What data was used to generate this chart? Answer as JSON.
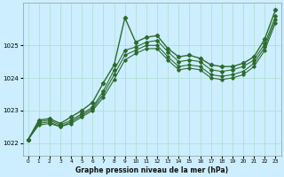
{
  "xlabel": "Graphe pression niveau de la mer (hPa)",
  "bg_color": "#cceeff",
  "grid_color": "#aaddcc",
  "line_color": "#2d6b2d",
  "ylim": [
    1021.6,
    1026.3
  ],
  "yticks": [
    1022,
    1023,
    1024,
    1025
  ],
  "ytick_labels": [
    "1022",
    "1023",
    "1024",
    "1025"
  ],
  "xlim": [
    -0.5,
    23.5
  ],
  "xticks": [
    0,
    1,
    2,
    3,
    4,
    5,
    6,
    7,
    8,
    9,
    10,
    11,
    12,
    13,
    14,
    15,
    16,
    17,
    18,
    19,
    20,
    21,
    22,
    23
  ],
  "line1": [
    1022.1,
    1022.7,
    1022.75,
    1022.6,
    1022.8,
    1023.0,
    1023.25,
    1023.85,
    1024.4,
    1025.85,
    1025.1,
    1025.25,
    1025.3,
    1024.9,
    1024.65,
    1024.7,
    1024.6,
    1024.4,
    1024.35,
    1024.35,
    1024.45,
    1024.65,
    1025.2,
    1026.1
  ],
  "line2": [
    1022.1,
    1022.65,
    1022.7,
    1022.55,
    1022.7,
    1022.9,
    1023.1,
    1023.6,
    1024.25,
    1024.85,
    1024.95,
    1025.1,
    1025.15,
    1024.8,
    1024.5,
    1024.55,
    1024.5,
    1024.25,
    1024.2,
    1024.25,
    1024.35,
    1024.55,
    1025.05,
    1025.9
  ],
  "line3": [
    1022.1,
    1022.6,
    1022.65,
    1022.5,
    1022.65,
    1022.85,
    1023.05,
    1023.5,
    1024.1,
    1024.7,
    1024.85,
    1025.0,
    1025.0,
    1024.65,
    1024.35,
    1024.4,
    1024.35,
    1024.1,
    1024.05,
    1024.1,
    1024.2,
    1024.45,
    1024.95,
    1025.8
  ],
  "line4": [
    1022.1,
    1022.55,
    1022.6,
    1022.5,
    1022.6,
    1022.8,
    1023.0,
    1023.4,
    1023.95,
    1024.55,
    1024.75,
    1024.9,
    1024.9,
    1024.55,
    1024.25,
    1024.3,
    1024.25,
    1024.0,
    1023.95,
    1024.0,
    1024.1,
    1024.35,
    1024.85,
    1025.7
  ]
}
